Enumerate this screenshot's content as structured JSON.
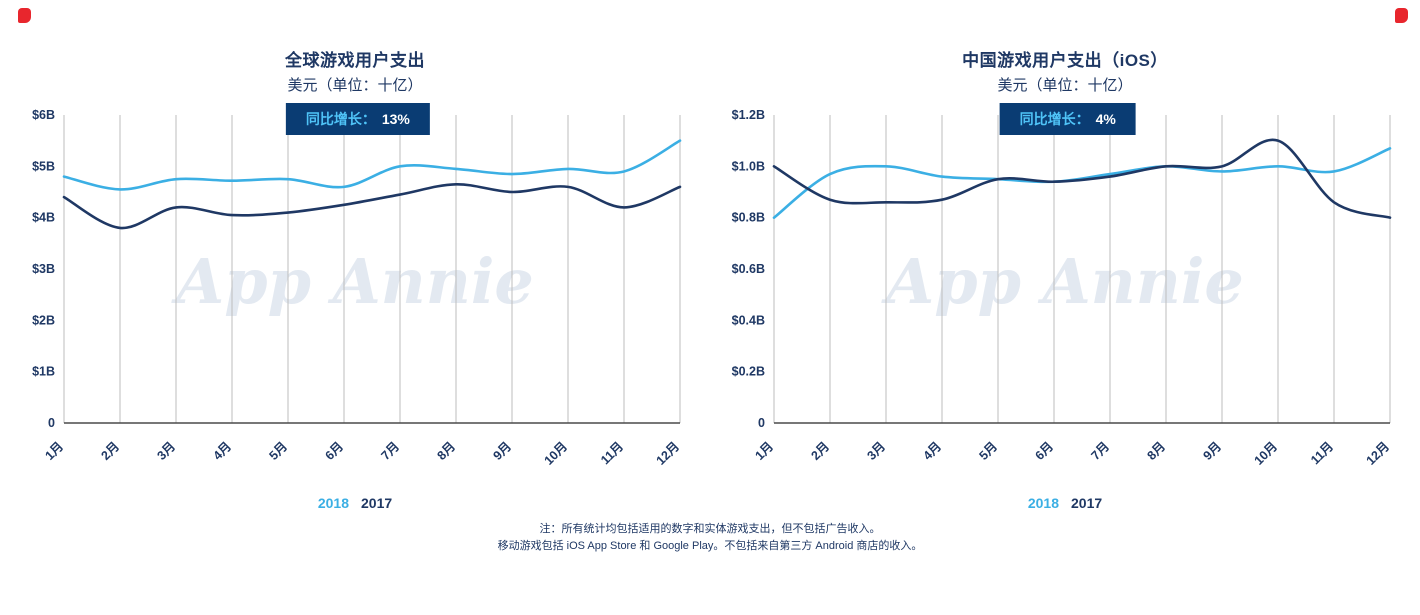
{
  "watermark": "App Annie",
  "colors": {
    "accent_blue": "#3bafe4",
    "navy": "#1f3864",
    "badge_bg": "#0a3c73",
    "badge_label": "#4fc3f7",
    "badge_value": "#ffffff",
    "grid": "#bdbdbd",
    "axis": "#4a4a4a",
    "corner_mark": "#e8262d"
  },
  "legend": {
    "items": [
      {
        "label": "2018",
        "color": "#3bafe4"
      },
      {
        "label": "2017",
        "color": "#1f3864"
      }
    ]
  },
  "note": {
    "line1": "注：所有统计均包括适用的数字和实体游戏支出，但不包括广告收入。",
    "line2": "移动游戏包括 iOS App Store 和 Google Play。不包括来自第三方 Android 商店的收入。"
  },
  "chart_data": [
    {
      "type": "line",
      "title": "全球游戏用户支出",
      "subtitle": "美元（单位：十亿）",
      "badge_label": "同比增长：",
      "badge_value": "13%",
      "xlabel": "",
      "ylabel": "",
      "ylim": [
        0,
        6
      ],
      "yticks": [
        0,
        1,
        2,
        3,
        4,
        5,
        6
      ],
      "ytick_labels": [
        "0",
        "$1B",
        "$2B",
        "$3B",
        "$4B",
        "$5B",
        "$6B"
      ],
      "grid": "vertical",
      "legend_position": "bottom",
      "categories": [
        "1月",
        "2月",
        "3月",
        "4月",
        "5月",
        "6月",
        "7月",
        "8月",
        "9月",
        "10月",
        "11月",
        "12月"
      ],
      "series": [
        {
          "name": "2018",
          "color": "#3bafe4",
          "values": [
            4.8,
            4.55,
            4.75,
            4.72,
            4.75,
            4.6,
            5.0,
            4.95,
            4.85,
            4.95,
            4.9,
            5.5
          ]
        },
        {
          "name": "2017",
          "color": "#1f3864",
          "values": [
            4.4,
            3.8,
            4.2,
            4.05,
            4.1,
            4.25,
            4.45,
            4.65,
            4.5,
            4.6,
            4.2,
            4.6
          ]
        }
      ]
    },
    {
      "type": "line",
      "title": "中国游戏用户支出（iOS）",
      "subtitle": "美元（单位：十亿）",
      "badge_label": "同比增长：",
      "badge_value": "4%",
      "xlabel": "",
      "ylabel": "",
      "ylim": [
        0,
        1.2
      ],
      "yticks": [
        0,
        0.2,
        0.4,
        0.6,
        0.8,
        1.0,
        1.2
      ],
      "ytick_labels": [
        "0",
        "$0.2B",
        "$0.4B",
        "$0.6B",
        "$0.8B",
        "$1.0B",
        "$1.2B"
      ],
      "grid": "vertical",
      "legend_position": "bottom",
      "categories": [
        "1月",
        "2月",
        "3月",
        "4月",
        "5月",
        "6月",
        "7月",
        "8月",
        "9月",
        "10月",
        "11月",
        "12月"
      ],
      "series": [
        {
          "name": "2018",
          "color": "#3bafe4",
          "values": [
            0.8,
            0.97,
            1.0,
            0.96,
            0.95,
            0.94,
            0.97,
            1.0,
            0.98,
            1.0,
            0.98,
            1.07
          ]
        },
        {
          "name": "2017",
          "color": "#1f3864",
          "values": [
            1.0,
            0.87,
            0.86,
            0.87,
            0.95,
            0.94,
            0.96,
            1.0,
            1.0,
            1.1,
            0.86,
            0.8
          ]
        }
      ]
    }
  ]
}
